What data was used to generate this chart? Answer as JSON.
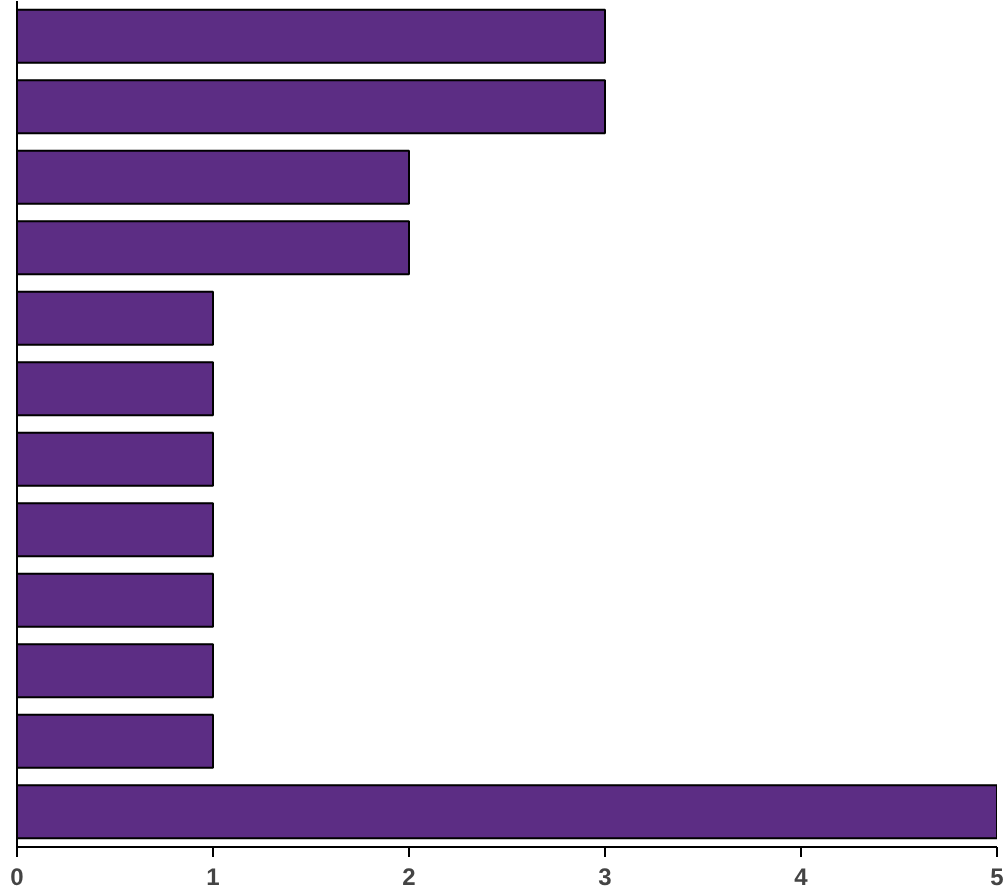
{
  "chart_data": {
    "type": "bar",
    "orientation": "horizontal",
    "categories": [
      null,
      null,
      null,
      null,
      null,
      null,
      null,
      null,
      null,
      null,
      null,
      null
    ],
    "values": [
      3,
      3,
      2,
      2,
      1,
      1,
      1,
      1,
      1,
      1,
      1,
      5
    ],
    "color": "#5c2d84",
    "xlim": [
      0,
      5
    ],
    "xticks": [
      0,
      1,
      2,
      3,
      4,
      5
    ],
    "grid": false
  }
}
